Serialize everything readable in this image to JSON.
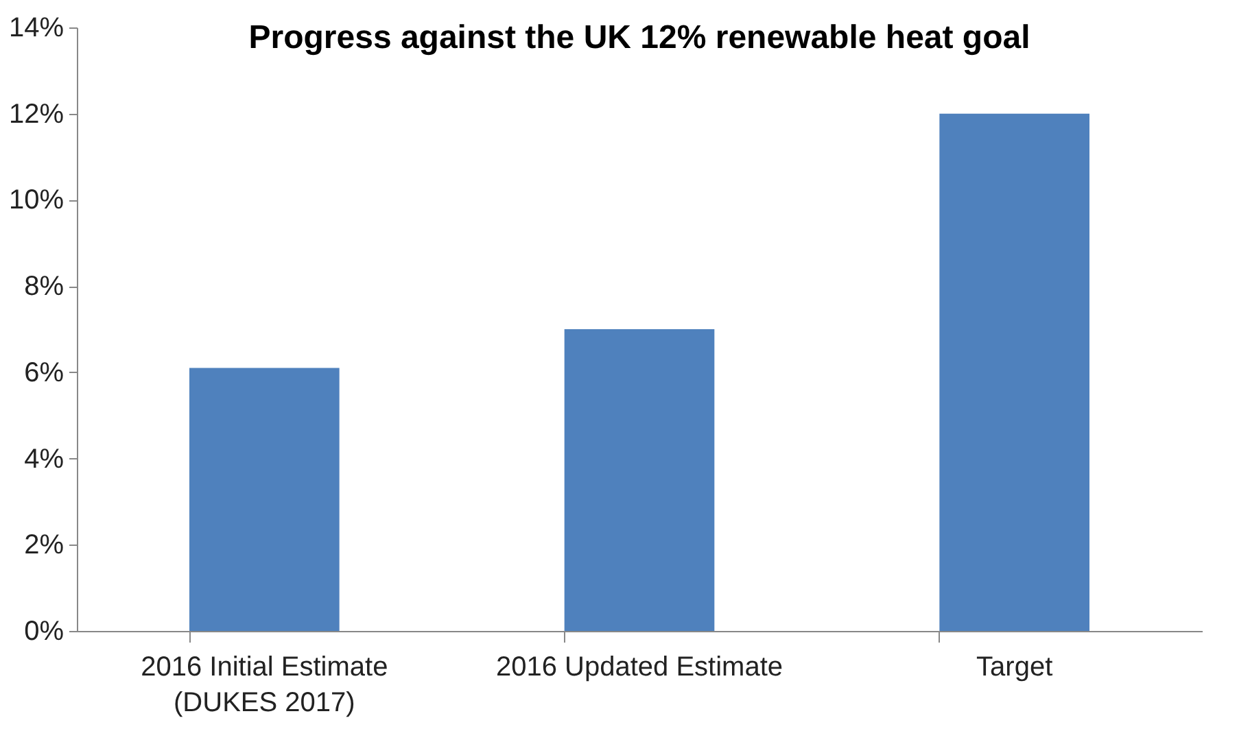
{
  "chart_data": {
    "type": "bar",
    "title": "Progress against the UK 12% renewable heat goal",
    "categories": [
      "2016 Initial Estimate (DUKES 2017)",
      "2016 Updated Estimate",
      "Target"
    ],
    "values": [
      6.1,
      7.0,
      12.0
    ],
    "color": "#4f81bd",
    "ylim": [
      0,
      14
    ],
    "yticks": [
      {
        "value": 0,
        "label": "0%"
      },
      {
        "value": 2,
        "label": "2%"
      },
      {
        "value": 4,
        "label": "4%"
      },
      {
        "value": 6,
        "label": "6%"
      },
      {
        "value": 8,
        "label": "8%"
      },
      {
        "value": 10,
        "label": "10%"
      },
      {
        "value": 12,
        "label": "12%"
      },
      {
        "value": 14,
        "label": "14%"
      }
    ],
    "grid": false
  }
}
